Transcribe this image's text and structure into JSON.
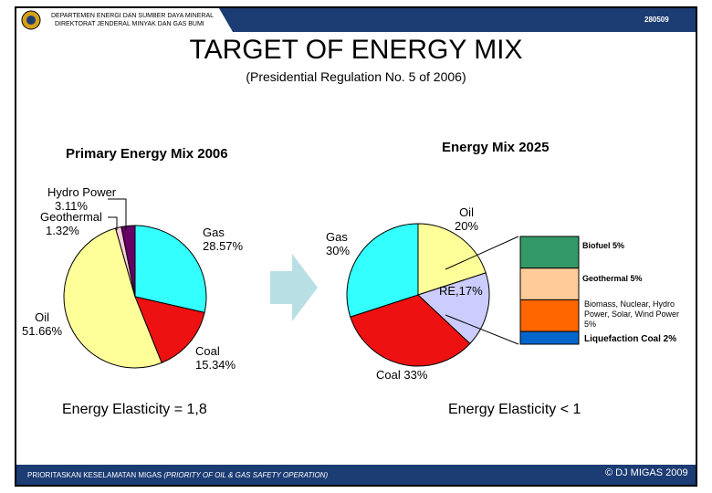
{
  "header": {
    "org_line1": "DEPARTEMEN ENERGI DAN SUMBER DAYA MINERAL",
    "org_line2": "DIREKTORAT JENDERAL MINYAK DAN GAS BUMI",
    "code": "280509",
    "bar_color": "#1c3c74"
  },
  "title": "TARGET OF ENERGY MIX",
  "subtitle": "(Presidential Regulation No. 5 of 2006)",
  "chart_data": [
    {
      "type": "pie",
      "title": "Primary Energy Mix 2006",
      "slices": [
        {
          "label": "Gas",
          "value_text": "28.57%",
          "value": 28.57,
          "color": "#33ffff"
        },
        {
          "label": "Coal",
          "value_text": "15.34%",
          "value": 15.34,
          "color": "#ee1111"
        },
        {
          "label": "Oil",
          "value_text": "51.66%",
          "value": 51.66,
          "color": "#ffff99"
        },
        {
          "label": "Geothermal",
          "value_text": "1.32%",
          "value": 1.32,
          "color": "#ffccdd"
        },
        {
          "label": "Hydro Power",
          "value_text": "3.11%",
          "value": 3.11,
          "color": "#660066"
        }
      ],
      "footnote": "Energy Elasticity = 1,8"
    },
    {
      "type": "pie",
      "title": "Energy Mix 2025",
      "slices": [
        {
          "label": "Oil",
          "value_text": "20%",
          "value": 20,
          "color": "#ffff99"
        },
        {
          "label": "RE,",
          "value_text": "17%",
          "value": 17,
          "color": "#ccccff"
        },
        {
          "label": "Coal",
          "value_text": "33%",
          "value": 33,
          "color": "#ee1111"
        },
        {
          "label": "Gas",
          "value_text": "30%",
          "value": 30,
          "color": "#33ffff"
        }
      ],
      "re_breakdown": [
        {
          "label": "Biofuel 5%",
          "value": 5,
          "color": "#339966"
        },
        {
          "label": "Geothermal 5%",
          "value": 5,
          "color": "#ffcc99"
        },
        {
          "label": "Biomass, Nuclear, Hydro Power, Solar, Wind Power 5%",
          "line1": "Biomass, Nuclear, Hydro",
          "line2": "Power, Solar, Wind Power",
          "line3": "5%",
          "value": 5,
          "color": "#ff6600"
        },
        {
          "label": "Liquefaction Coal 2%",
          "value": 2,
          "color": "#0066cc"
        }
      ],
      "footnote": "Energy Elasticity < 1"
    }
  ],
  "footer": {
    "text_main": "PRIORITASKAN KESELAMATAN MIGAS",
    "text_italic": "(PRIORITY OF OIL & GAS SAFETY OPERATION)",
    "copyright": "© DJ MIGAS 2009"
  }
}
